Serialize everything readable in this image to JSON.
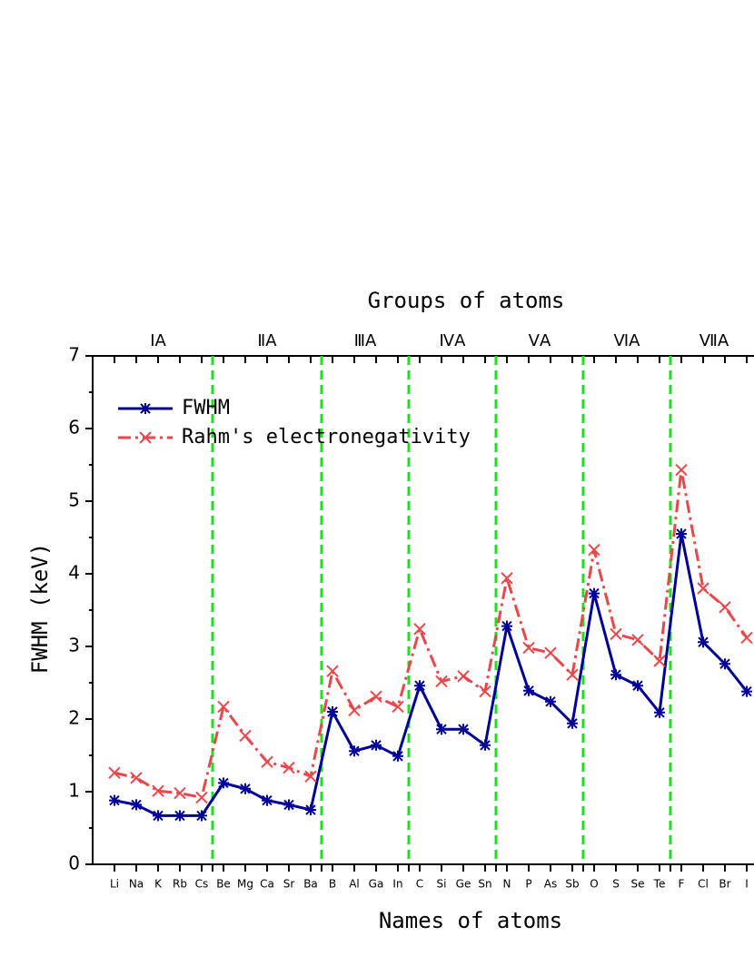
{
  "chart_data": {
    "type": "line",
    "title_top": "Groups of atoms",
    "xlabel": "Names of atoms",
    "ylabel": "FWHM (keV)",
    "categories": [
      "Li",
      "Na",
      "K",
      "Rb",
      "Cs",
      "Be",
      "Mg",
      "Ca",
      "Sr",
      "Ba",
      "B",
      "Al",
      "Ga",
      "In",
      "C",
      "Si",
      "Ge",
      "Sn",
      "N",
      "P",
      "As",
      "Sb",
      "O",
      "S",
      "Se",
      "Te",
      "F",
      "Cl",
      "Br",
      "I"
    ],
    "groups": [
      {
        "label": "ⅠA",
        "span": [
          0,
          4
        ]
      },
      {
        "label": "ⅡA",
        "span": [
          5,
          9
        ]
      },
      {
        "label": "ⅢA",
        "span": [
          10,
          13
        ]
      },
      {
        "label": "ⅣA",
        "span": [
          14,
          17
        ]
      },
      {
        "label": "ⅤA",
        "span": [
          18,
          21
        ]
      },
      {
        "label": "ⅥA",
        "span": [
          22,
          25
        ]
      },
      {
        "label": "ⅦA",
        "span": [
          26,
          29
        ]
      }
    ],
    "series": [
      {
        "name": "FWHM",
        "color": "#000099",
        "values": [
          0.88,
          0.82,
          0.67,
          0.67,
          0.67,
          1.12,
          1.04,
          0.88,
          0.82,
          0.75,
          2.1,
          1.56,
          1.64,
          1.49,
          2.46,
          1.86,
          1.86,
          1.64,
          3.28,
          2.39,
          2.24,
          1.94,
          3.73,
          2.61,
          2.46,
          2.09,
          4.55,
          3.06,
          2.76,
          2.38
        ]
      },
      {
        "name": "Rahm's electronegativity",
        "color": "#e8474b",
        "values": [
          1.26,
          1.19,
          1.01,
          0.98,
          0.92,
          2.17,
          1.77,
          1.41,
          1.33,
          1.21,
          2.66,
          2.12,
          2.31,
          2.17,
          3.24,
          2.52,
          2.59,
          2.38,
          3.94,
          2.98,
          2.91,
          2.61,
          4.33,
          3.17,
          3.09,
          2.8,
          5.43,
          3.8,
          3.54,
          3.12
        ]
      }
    ],
    "ylim": [
      0,
      7
    ],
    "yticks": [
      0,
      1,
      2,
      3,
      4,
      5,
      6,
      7
    ],
    "divider_color": "#22dd22",
    "legend": "upper left"
  }
}
